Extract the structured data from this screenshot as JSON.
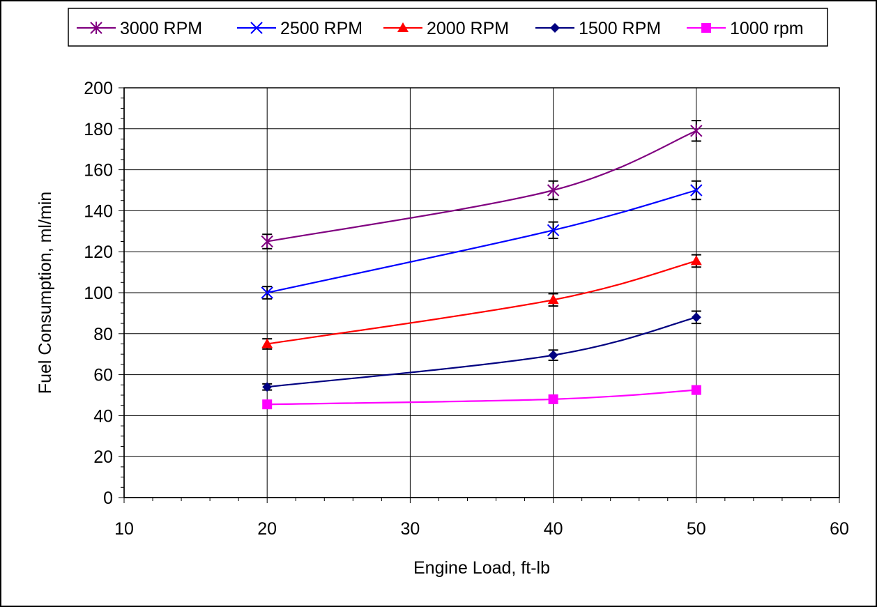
{
  "chart_data": {
    "type": "line",
    "title": "",
    "xlabel": "Engine Load, ft-lb",
    "ylabel": "Fuel Consumption, ml/min",
    "xlim": [
      10,
      60
    ],
    "ylim": [
      0,
      200
    ],
    "xticks": [
      10,
      20,
      30,
      40,
      50,
      60
    ],
    "yticks": [
      0,
      20,
      40,
      60,
      80,
      100,
      120,
      140,
      160,
      180,
      200
    ],
    "grid": true,
    "legend": "top",
    "x": [
      20,
      40,
      50
    ],
    "series": [
      {
        "name": "3000 RPM",
        "color": "#800080",
        "marker": "star",
        "values": [
          125,
          150,
          179
        ],
        "errors": [
          3.5,
          4.5,
          5
        ]
      },
      {
        "name": "2500 RPM",
        "color": "#0000FF",
        "marker": "x",
        "values": [
          100,
          130.5,
          150
        ],
        "errors": [
          3,
          4,
          4.5
        ]
      },
      {
        "name": "2000 RPM",
        "color": "#FF0000",
        "marker": "triangle",
        "values": [
          75,
          96.5,
          115.5
        ],
        "errors": [
          2.5,
          3,
          3
        ]
      },
      {
        "name": "1500 RPM",
        "color": "#000080",
        "marker": "diamond",
        "values": [
          54,
          69.5,
          88
        ],
        "errors": [
          1.5,
          2.5,
          3
        ]
      },
      {
        "name": "1000 rpm",
        "color": "#FF00FF",
        "marker": "square",
        "values": [
          45.5,
          48,
          52.5
        ],
        "errors": [
          0,
          0,
          0
        ]
      }
    ]
  }
}
